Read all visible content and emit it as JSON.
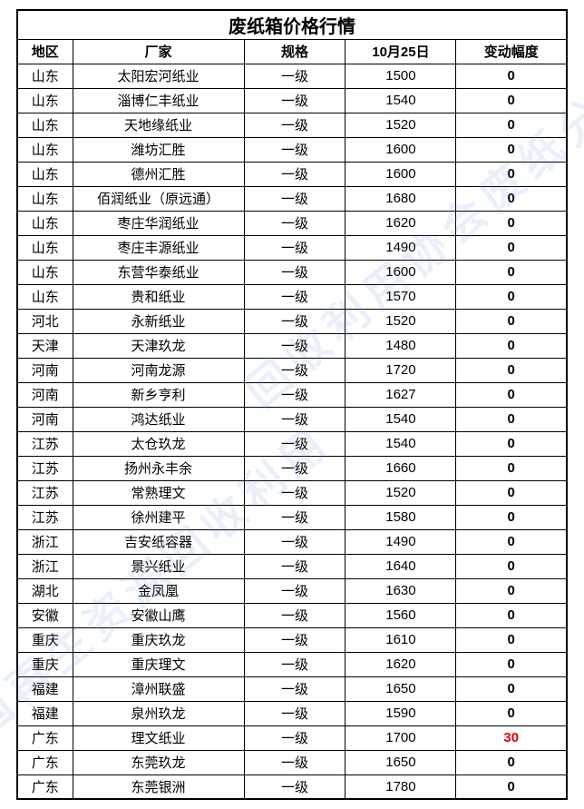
{
  "title": "废纸箱价格行情",
  "columns": [
    "地区",
    "厂家",
    "规格",
    "10月25日",
    "变动幅度"
  ],
  "columnKeys": [
    "region",
    "factory",
    "spec",
    "price",
    "change"
  ],
  "rows": [
    {
      "region": "山东",
      "factory": "太阳宏河纸业",
      "spec": "一级",
      "price": "1500",
      "change": "0",
      "changeColor": "#000000"
    },
    {
      "region": "山东",
      "factory": "淄博仁丰纸业",
      "spec": "一级",
      "price": "1540",
      "change": "0",
      "changeColor": "#000000"
    },
    {
      "region": "山东",
      "factory": "天地缘纸业",
      "spec": "一级",
      "price": "1520",
      "change": "0",
      "changeColor": "#000000"
    },
    {
      "region": "山东",
      "factory": "潍坊汇胜",
      "spec": "一级",
      "price": "1600",
      "change": "0",
      "changeColor": "#000000"
    },
    {
      "region": "山东",
      "factory": "德州汇胜",
      "spec": "一级",
      "price": "1600",
      "change": "0",
      "changeColor": "#000000"
    },
    {
      "region": "山东",
      "factory": "佰润纸业（原远通）",
      "spec": "一级",
      "price": "1680",
      "change": "0",
      "changeColor": "#000000"
    },
    {
      "region": "山东",
      "factory": "枣庄华润纸业",
      "spec": "一级",
      "price": "1620",
      "change": "0",
      "changeColor": "#000000"
    },
    {
      "region": "山东",
      "factory": "枣庄丰源纸业",
      "spec": "一级",
      "price": "1490",
      "change": "0",
      "changeColor": "#000000"
    },
    {
      "region": "山东",
      "factory": "东营华泰纸业",
      "spec": "一级",
      "price": "1600",
      "change": "0",
      "changeColor": "#000000"
    },
    {
      "region": "山东",
      "factory": "贵和纸业",
      "spec": "一级",
      "price": "1570",
      "change": "0",
      "changeColor": "#000000"
    },
    {
      "region": "河北",
      "factory": "永新纸业",
      "spec": "一级",
      "price": "1520",
      "change": "0",
      "changeColor": "#000000"
    },
    {
      "region": "天津",
      "factory": "天津玖龙",
      "spec": "一级",
      "price": "1480",
      "change": "0",
      "changeColor": "#000000"
    },
    {
      "region": "河南",
      "factory": "河南龙源",
      "spec": "一级",
      "price": "1720",
      "change": "0",
      "changeColor": "#000000"
    },
    {
      "region": "河南",
      "factory": "新乡亨利",
      "spec": "一级",
      "price": "1627",
      "change": "0",
      "changeColor": "#000000"
    },
    {
      "region": "河南",
      "factory": "鸿达纸业",
      "spec": "一级",
      "price": "1540",
      "change": "0",
      "changeColor": "#000000"
    },
    {
      "region": "江苏",
      "factory": "太仓玖龙",
      "spec": "一级",
      "price": "1540",
      "change": "0",
      "changeColor": "#000000"
    },
    {
      "region": "江苏",
      "factory": "扬州永丰余",
      "spec": "一级",
      "price": "1660",
      "change": "0",
      "changeColor": "#000000"
    },
    {
      "region": "江苏",
      "factory": "常熟理文",
      "spec": "一级",
      "price": "1520",
      "change": "0",
      "changeColor": "#000000"
    },
    {
      "region": "江苏",
      "factory": "徐州建平",
      "spec": "一级",
      "price": "1580",
      "change": "0",
      "changeColor": "#000000"
    },
    {
      "region": "浙江",
      "factory": "吉安纸容器",
      "spec": "一级",
      "price": "1490",
      "change": "0",
      "changeColor": "#000000"
    },
    {
      "region": "浙江",
      "factory": "景兴纸业",
      "spec": "一级",
      "price": "1640",
      "change": "0",
      "changeColor": "#000000"
    },
    {
      "region": "湖北",
      "factory": "金凤凰",
      "spec": "一级",
      "price": "1630",
      "change": "0",
      "changeColor": "#000000"
    },
    {
      "region": "安徽",
      "factory": "安徽山鹰",
      "spec": "一级",
      "price": "1560",
      "change": "0",
      "changeColor": "#000000"
    },
    {
      "region": "重庆",
      "factory": "重庆玖龙",
      "spec": "一级",
      "price": "1610",
      "change": "0",
      "changeColor": "#000000"
    },
    {
      "region": "重庆",
      "factory": "重庆理文",
      "spec": "一级",
      "price": "1620",
      "change": "0",
      "changeColor": "#000000"
    },
    {
      "region": "福建",
      "factory": "漳州联盛",
      "spec": "一级",
      "price": "1650",
      "change": "0",
      "changeColor": "#000000"
    },
    {
      "region": "福建",
      "factory": "泉州玖龙",
      "spec": "一级",
      "price": "1590",
      "change": "0",
      "changeColor": "#000000"
    },
    {
      "region": "广东",
      "factory": "理文纸业",
      "spec": "一级",
      "price": "1700",
      "change": "30",
      "changeColor": "#e60000"
    },
    {
      "region": "广东",
      "factory": "东莞玖龙",
      "spec": "一级",
      "price": "1650",
      "change": "0",
      "changeColor": "#000000"
    },
    {
      "region": "广东",
      "factory": "东莞银洲",
      "spec": "一级",
      "price": "1780",
      "change": "0",
      "changeColor": "#000000"
    }
  ],
  "style": {
    "borderColor": "#000000",
    "background": "#ffffff",
    "titleFontSize": 20,
    "headerFontSize": 15,
    "cellFontSize": 15,
    "changeBold": true,
    "watermarkColor": "rgba(70,130,220,0.12)"
  }
}
